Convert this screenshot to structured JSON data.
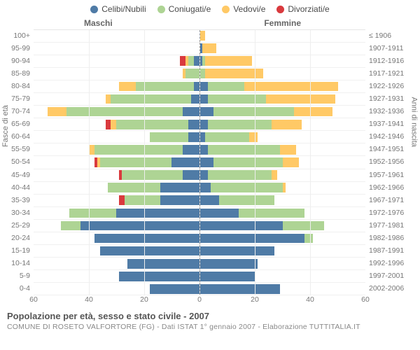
{
  "type": "population-pyramid",
  "title": "Popolazione per età, sesso e stato civile - 2007",
  "subtitle": "COMUNE DI ROSETO VALFORTORE (FG) - Dati ISTAT 1° gennaio 2007 - Elaborazione TUTTITALIA.IT",
  "legend": [
    {
      "label": "Celibi/Nubili",
      "color": "#4f7ba6"
    },
    {
      "label": "Coniugati/e",
      "color": "#aed494"
    },
    {
      "label": "Vedovi/e",
      "color": "#ffc966"
    },
    {
      "label": "Divorziati/e",
      "color": "#d93a3e"
    }
  ],
  "header_male": "Maschi",
  "header_female": "Femmine",
  "y_title_left": "Fasce di età",
  "y_title_right": "Anni di nascita",
  "x_ticks": [
    60,
    40,
    20,
    0,
    20,
    40,
    60
  ],
  "x_max": 60,
  "colors": {
    "single": "#4f7ba6",
    "married": "#aed494",
    "widowed": "#ffc966",
    "divorced": "#d93a3e",
    "background": "#ffffff",
    "grid": "#eeeeee",
    "text": "#777777",
    "title_text": "#555555"
  },
  "age_labels": [
    "100+",
    "95-99",
    "90-94",
    "85-89",
    "80-84",
    "75-79",
    "70-74",
    "65-69",
    "60-64",
    "55-59",
    "50-54",
    "45-49",
    "40-44",
    "35-39",
    "30-34",
    "25-29",
    "20-24",
    "15-19",
    "10-14",
    "5-9",
    "0-4"
  ],
  "birth_labels": [
    "≤ 1906",
    "1907-1911",
    "1912-1916",
    "1917-1921",
    "1922-1926",
    "1927-1931",
    "1932-1936",
    "1937-1941",
    "1942-1946",
    "1947-1951",
    "1952-1956",
    "1957-1961",
    "1962-1966",
    "1967-1971",
    "1972-1976",
    "1977-1981",
    "1982-1986",
    "1987-1991",
    "1992-1996",
    "1997-2001",
    "2002-2006"
  ],
  "rows": [
    {
      "m": {
        "s": 0,
        "c": 0,
        "w": 0,
        "d": 0
      },
      "f": {
        "s": 0,
        "c": 0,
        "w": 2,
        "d": 0
      }
    },
    {
      "m": {
        "s": 0,
        "c": 0,
        "w": 0,
        "d": 0
      },
      "f": {
        "s": 1,
        "c": 0,
        "w": 5,
        "d": 0
      }
    },
    {
      "m": {
        "s": 2,
        "c": 2,
        "w": 1,
        "d": 2
      },
      "f": {
        "s": 1,
        "c": 1,
        "w": 17,
        "d": 0
      }
    },
    {
      "m": {
        "s": 0,
        "c": 5,
        "w": 1,
        "d": 0
      },
      "f": {
        "s": 0,
        "c": 2,
        "w": 21,
        "d": 0
      }
    },
    {
      "m": {
        "s": 2,
        "c": 21,
        "w": 6,
        "d": 0
      },
      "f": {
        "s": 3,
        "c": 13,
        "w": 34,
        "d": 0
      }
    },
    {
      "m": {
        "s": 3,
        "c": 29,
        "w": 2,
        "d": 0
      },
      "f": {
        "s": 3,
        "c": 21,
        "w": 25,
        "d": 0
      }
    },
    {
      "m": {
        "s": 6,
        "c": 42,
        "w": 7,
        "d": 0
      },
      "f": {
        "s": 5,
        "c": 29,
        "w": 14,
        "d": 0
      }
    },
    {
      "m": {
        "s": 4,
        "c": 26,
        "w": 2,
        "d": 2
      },
      "f": {
        "s": 3,
        "c": 23,
        "w": 11,
        "d": 0
      }
    },
    {
      "m": {
        "s": 4,
        "c": 14,
        "w": 0,
        "d": 0
      },
      "f": {
        "s": 2,
        "c": 16,
        "w": 3,
        "d": 0
      }
    },
    {
      "m": {
        "s": 6,
        "c": 32,
        "w": 2,
        "d": 0
      },
      "f": {
        "s": 3,
        "c": 26,
        "w": 6,
        "d": 0
      }
    },
    {
      "m": {
        "s": 10,
        "c": 26,
        "w": 1,
        "d": 1
      },
      "f": {
        "s": 5,
        "c": 25,
        "w": 6,
        "d": 0
      }
    },
    {
      "m": {
        "s": 6,
        "c": 22,
        "w": 0,
        "d": 1
      },
      "f": {
        "s": 3,
        "c": 23,
        "w": 2,
        "d": 0
      }
    },
    {
      "m": {
        "s": 14,
        "c": 19,
        "w": 0,
        "d": 0
      },
      "f": {
        "s": 4,
        "c": 26,
        "w": 1,
        "d": 0
      }
    },
    {
      "m": {
        "s": 14,
        "c": 13,
        "w": 0,
        "d": 2
      },
      "f": {
        "s": 7,
        "c": 20,
        "w": 0,
        "d": 0
      }
    },
    {
      "m": {
        "s": 30,
        "c": 17,
        "w": 0,
        "d": 0
      },
      "f": {
        "s": 14,
        "c": 24,
        "w": 0,
        "d": 0
      }
    },
    {
      "m": {
        "s": 43,
        "c": 7,
        "w": 0,
        "d": 0
      },
      "f": {
        "s": 30,
        "c": 15,
        "w": 0,
        "d": 0
      }
    },
    {
      "m": {
        "s": 38,
        "c": 0,
        "w": 0,
        "d": 0
      },
      "f": {
        "s": 38,
        "c": 3,
        "w": 0,
        "d": 0
      }
    },
    {
      "m": {
        "s": 36,
        "c": 0,
        "w": 0,
        "d": 0
      },
      "f": {
        "s": 27,
        "c": 0,
        "w": 0,
        "d": 0
      }
    },
    {
      "m": {
        "s": 26,
        "c": 0,
        "w": 0,
        "d": 0
      },
      "f": {
        "s": 21,
        "c": 0,
        "w": 0,
        "d": 0
      }
    },
    {
      "m": {
        "s": 29,
        "c": 0,
        "w": 0,
        "d": 0
      },
      "f": {
        "s": 20,
        "c": 0,
        "w": 0,
        "d": 0
      }
    },
    {
      "m": {
        "s": 18,
        "c": 0,
        "w": 0,
        "d": 0
      },
      "f": {
        "s": 29,
        "c": 0,
        "w": 0,
        "d": 0
      }
    }
  ],
  "label_fontsize": 10.5,
  "title_fontsize": 13,
  "legend_fontsize": 12
}
